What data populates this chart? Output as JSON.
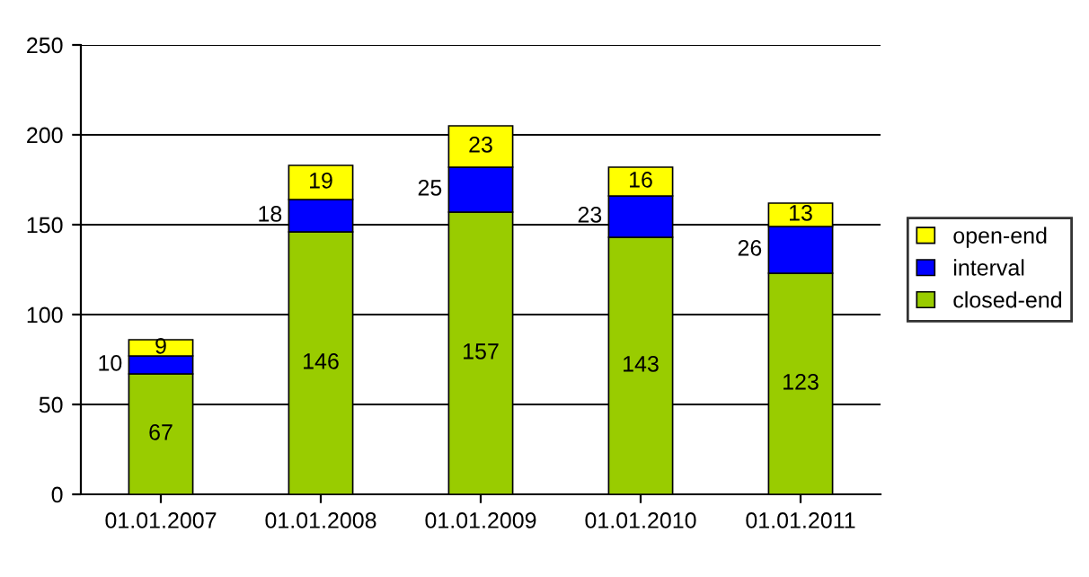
{
  "chart_data": {
    "type": "bar",
    "stacked": true,
    "categories": [
      "01.01.2007",
      "01.01.2008",
      "01.01.2009",
      "01.01.2010",
      "01.01.2011"
    ],
    "series": [
      {
        "name": "closed-end",
        "color": "#99cc00",
        "values": [
          67,
          146,
          157,
          143,
          123
        ]
      },
      {
        "name": "interval",
        "color": "#0000ff",
        "values": [
          10,
          18,
          25,
          23,
          26
        ]
      },
      {
        "name": "open-end",
        "color": "#ffff00",
        "values": [
          9,
          19,
          23,
          16,
          13
        ]
      }
    ],
    "ylim": [
      0,
      250
    ],
    "yticks": [
      0,
      50,
      100,
      150,
      200,
      250
    ],
    "grid": "y",
    "legend": "right",
    "data_labels": true
  }
}
